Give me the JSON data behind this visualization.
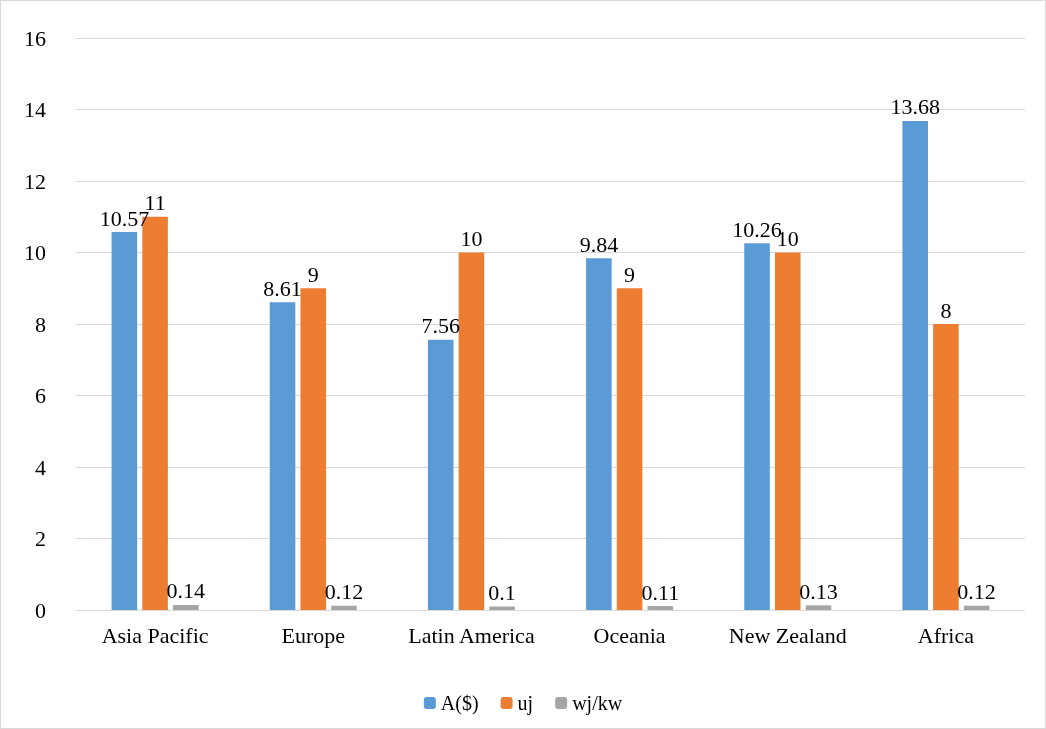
{
  "chart_data": {
    "type": "bar",
    "categories": [
      "Asia Pacific",
      "Europe",
      "Latin America",
      "Oceania",
      "New Zealand",
      "Africa"
    ],
    "series": [
      {
        "name": "A($)",
        "color": "#5b9bd5",
        "values": [
          10.57,
          8.61,
          7.56,
          9.84,
          10.26,
          13.68
        ]
      },
      {
        "name": "uj",
        "color": "#ed7d31",
        "values": [
          11,
          9,
          10,
          9,
          10,
          8
        ]
      },
      {
        "name": "wj/kw",
        "color": "#a5a5a5",
        "values": [
          0.14,
          0.12,
          0.1,
          0.11,
          0.13,
          0.12
        ]
      }
    ],
    "ylim": [
      0,
      16
    ],
    "yticks": [
      0,
      2,
      4,
      6,
      8,
      10,
      12,
      14,
      16
    ],
    "grid": "y",
    "legend": "bottom",
    "data_labels": true
  }
}
